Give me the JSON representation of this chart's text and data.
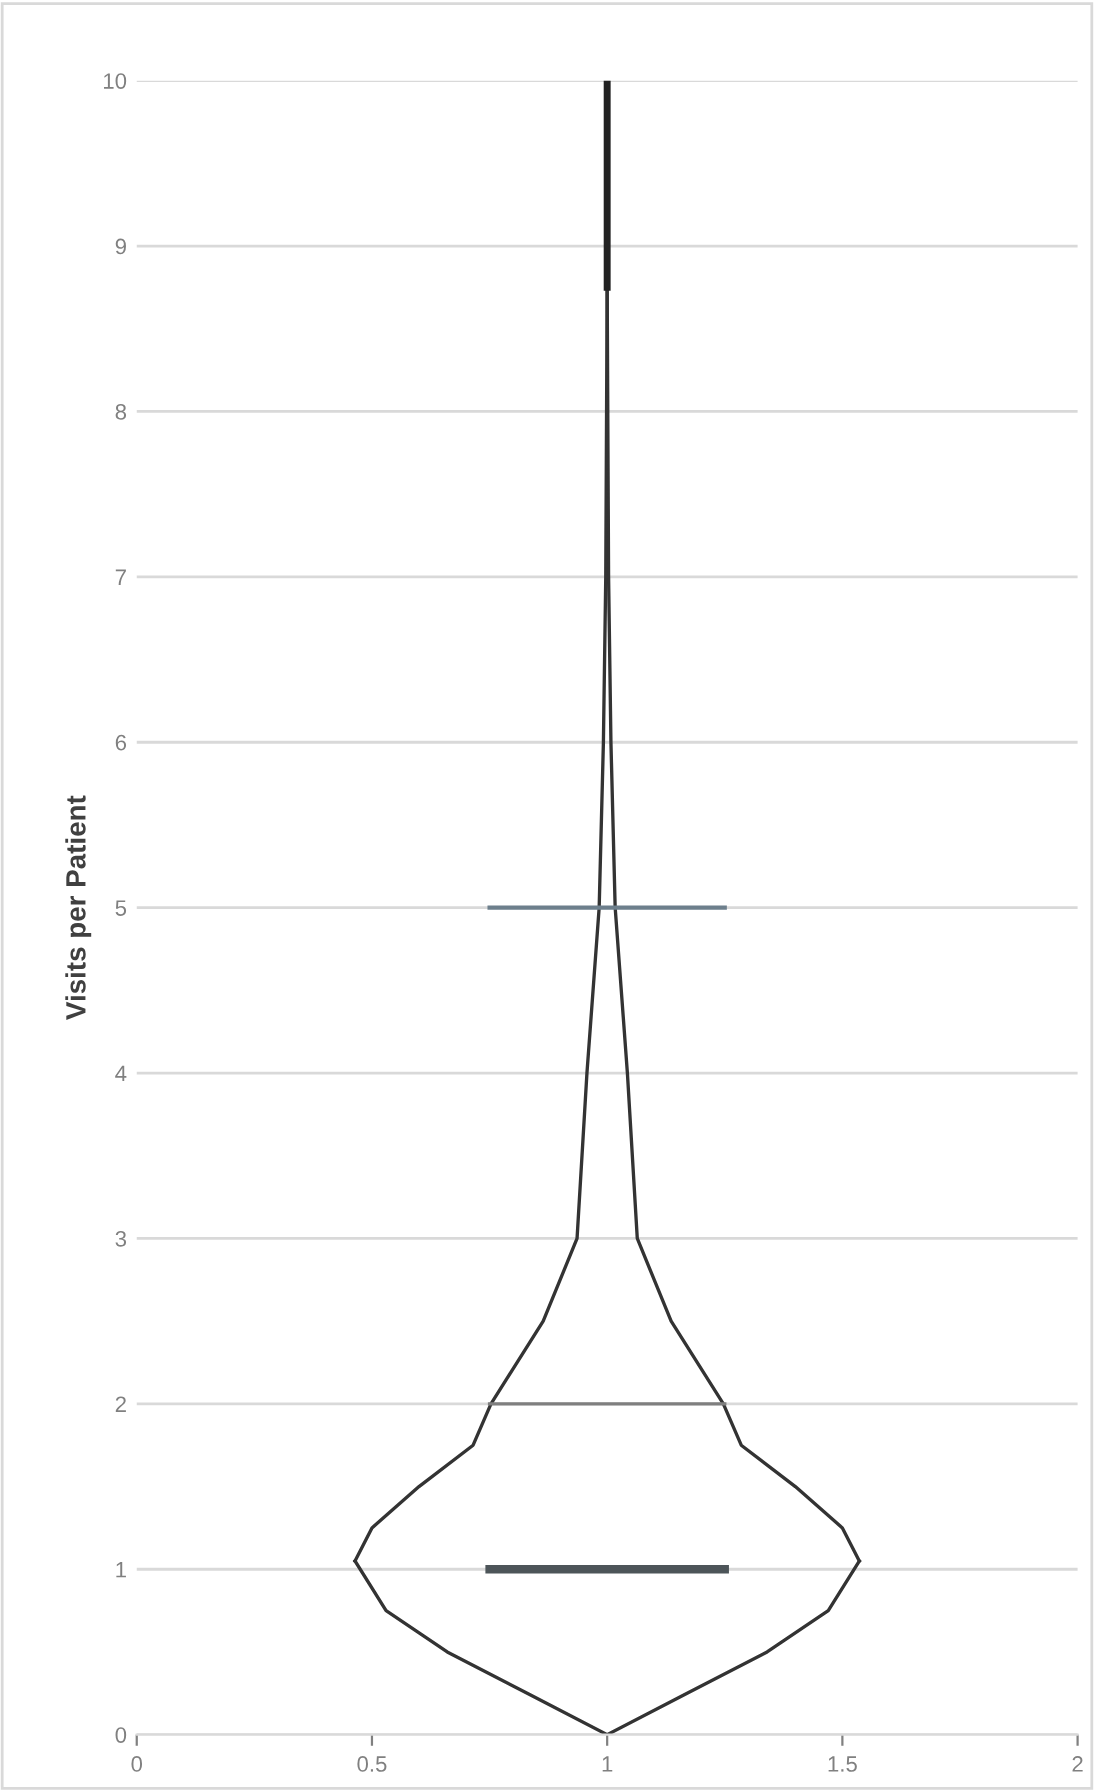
{
  "chart_data": {
    "type": "line",
    "ylabel": "Visits per Patient",
    "xlim": [
      0,
      2
    ],
    "xticks": [
      0,
      0.5,
      1,
      1.5,
      2
    ],
    "ylim": [
      0,
      10
    ],
    "yticks": [
      0,
      1,
      2,
      3,
      4,
      5,
      6,
      7,
      8,
      9,
      10
    ],
    "grid": "y",
    "marker": "none",
    "line_style": "solid",
    "series": [
      {
        "color": "#333333",
        "x": [
          1.0,
          1.17,
          1.34,
          1.47,
          1.536
        ],
        "values": [
          0,
          0.25,
          0.5,
          0.75,
          1.05
        ]
      },
      {
        "color": "#333333",
        "x": [
          1.0,
          1.003,
          1.008,
          1.017,
          1.043,
          1.064,
          1.136,
          1.247,
          1.285,
          1.4,
          1.5,
          1.536
        ],
        "values": [
          8.75,
          7,
          6,
          5,
          4,
          3,
          2.5,
          2,
          1.75,
          1.5,
          1.25,
          1.05
        ]
      },
      {
        "color": "#333333",
        "x": [
          0.464,
          0.5,
          0.6,
          0.715,
          0.753,
          0.864,
          0.936,
          0.957,
          0.983,
          0.992,
          0.997,
          1.0
        ],
        "values": [
          1.05,
          1.25,
          1.5,
          1.75,
          2,
          2.5,
          3,
          4,
          5,
          6,
          7,
          8.75
        ]
      },
      {
        "color": "#333333",
        "x": [
          0.464,
          0.53,
          0.66,
          0.83,
          1.0
        ],
        "values": [
          1.05,
          0.75,
          0.5,
          0.25,
          0
        ]
      },
      {
        "color": "#4d5559",
        "x": [
          0.75,
          1.25
        ],
        "values": [
          1,
          1
        ]
      },
      {
        "color": "#7f7f7f",
        "x": [
          0.75,
          1.25
        ],
        "values": [
          2,
          2
        ]
      },
      {
        "color": "#6d7f8c",
        "x": [
          0.75,
          1.25
        ],
        "values": [
          5,
          5
        ]
      },
      {
        "color": "#222222",
        "x": [
          1,
          1
        ],
        "values": [
          8.75,
          10
        ]
      }
    ]
  }
}
